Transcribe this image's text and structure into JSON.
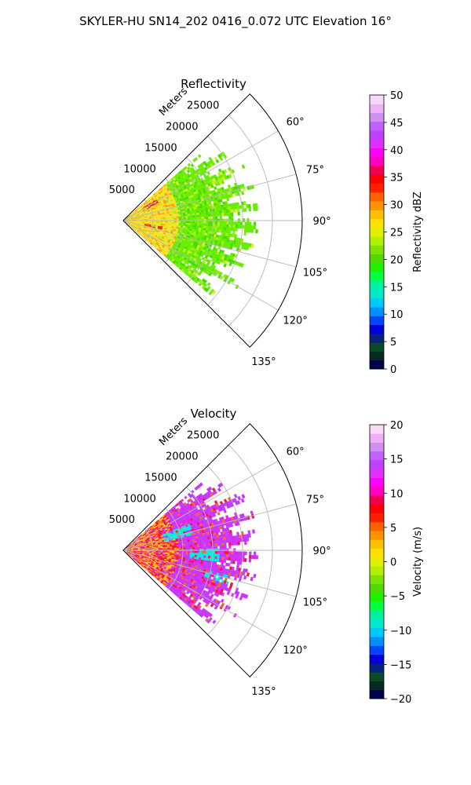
{
  "figure_title": "SKYLER-HU  SN14_202  0416_0.072 UTC Elevation 16°",
  "chart_data": [
    {
      "type": "heatmap",
      "projection": "polar-sector",
      "title": "Reflectivity",
      "radial_axis_label": "Meters",
      "radial_ticks": [
        5000,
        10000,
        15000,
        20000,
        25000
      ],
      "radial_tick_labels": [
        "5000",
        "10000",
        "15000",
        "20000",
        "25000"
      ],
      "radial_range": [
        0,
        30000
      ],
      "azimuth_range_deg": [
        45,
        135
      ],
      "azimuth_ticks": [
        60,
        75,
        90,
        105,
        120,
        135
      ],
      "azimuth_tick_labels": [
        "60°",
        "75°",
        "90°",
        "105°",
        "120°",
        "135°"
      ],
      "grid": true,
      "colorbar": {
        "label": "Reflectivity dBZ",
        "range": [
          0,
          50
        ],
        "ticks": [
          0,
          5,
          10,
          15,
          20,
          25,
          30,
          35,
          40,
          45,
          50
        ],
        "tick_labels": [
          "0",
          "5",
          "10",
          "15",
          "20",
          "25",
          "30",
          "35",
          "40",
          "45",
          "50"
        ],
        "colors": [
          "#02044a",
          "#052a1f",
          "#0a4a2a",
          "#0a2080",
          "#0000d8",
          "#0045ff",
          "#0090ff",
          "#00c8ff",
          "#00e8c8",
          "#00f0a0",
          "#00ff40",
          "#20f000",
          "#50d800",
          "#80e000",
          "#b0f000",
          "#e0f000",
          "#ffe000",
          "#ffc000",
          "#ff9000",
          "#ff6000",
          "#ff2000",
          "#ff0000",
          "#f00050",
          "#ff00c0",
          "#ff00ff",
          "#e030ff",
          "#c040ff",
          "#c060ff",
          "#d090f0",
          "#f0b0f8",
          "#f8d8f8"
        ]
      },
      "field_palette": [
        "#66ee00",
        "#44dd00",
        "#88ee10",
        "#aaee22",
        "#ddee30",
        "#ffdd22",
        "#ff9922",
        "#ee2222"
      ]
    },
    {
      "type": "heatmap",
      "projection": "polar-sector",
      "title": "Velocity",
      "radial_axis_label": "Meters",
      "radial_ticks": [
        5000,
        10000,
        15000,
        20000,
        25000
      ],
      "radial_tick_labels": [
        "5000",
        "10000",
        "15000",
        "20000",
        "25000"
      ],
      "radial_range": [
        0,
        30000
      ],
      "azimuth_range_deg": [
        45,
        135
      ],
      "azimuth_ticks": [
        60,
        75,
        90,
        105,
        120,
        135
      ],
      "azimuth_tick_labels": [
        "60°",
        "75°",
        "90°",
        "105°",
        "120°",
        "135°"
      ],
      "grid": true,
      "colorbar": {
        "label": "Velocity (m/s)",
        "range": [
          -20,
          20
        ],
        "ticks": [
          -20,
          -15,
          -10,
          -5,
          0,
          5,
          10,
          15,
          20
        ],
        "tick_labels": [
          "−20",
          "−15",
          "−10",
          "−5",
          "0",
          "5",
          "10",
          "15",
          "20"
        ],
        "colors": [
          "#02044a",
          "#052a1f",
          "#0a4a2a",
          "#0a2080",
          "#0000d8",
          "#0045ff",
          "#0090ff",
          "#00c8ff",
          "#00e8c8",
          "#00f0a0",
          "#00ff40",
          "#20f000",
          "#50d800",
          "#80e000",
          "#b0f000",
          "#e0f000",
          "#ffe000",
          "#ffc000",
          "#ff9000",
          "#ff6000",
          "#ff2000",
          "#ff0000",
          "#f00050",
          "#ff00c0",
          "#ff00ff",
          "#e030ff",
          "#c040ff",
          "#c060ff",
          "#d090f0",
          "#f0b0f8",
          "#f8d8f8"
        ]
      },
      "field_palette": [
        "#cc33ff",
        "#bb44ff",
        "#dd22ff",
        "#ff1133",
        "#ff6622",
        "#ffbb22",
        "#00eedd",
        "#88ccff"
      ]
    }
  ]
}
